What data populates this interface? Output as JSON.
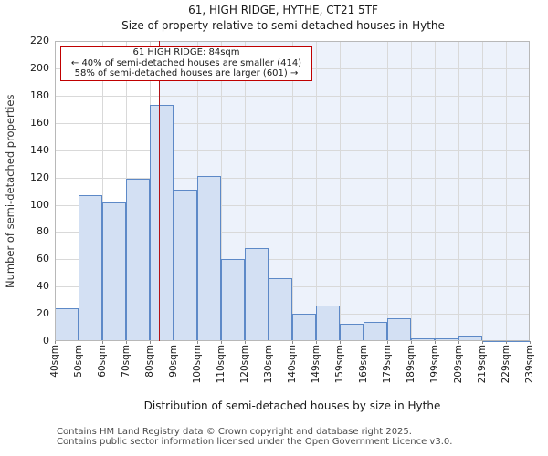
{
  "title": "61, HIGH RIDGE, HYTHE, CT21 5TF",
  "subtitle": "Size of property relative to semi-detached houses in Hythe",
  "annotation": {
    "line1": "61 HIGH RIDGE: 84sqm",
    "line2": "← 40% of semi-detached houses are smaller (414)",
    "line3": "58% of semi-detached houses are larger (601) →"
  },
  "chart_data": {
    "type": "bar",
    "title": "61, HIGH RIDGE, HYTHE, CT21 5TF — Size of property relative to semi-detached houses in Hythe",
    "bin_edges": [
      "40sqm",
      "50sqm",
      "60sqm",
      "70sqm",
      "80sqm",
      "90sqm",
      "100sqm",
      "110sqm",
      "120sqm",
      "130sqm",
      "140sqm",
      "149sqm",
      "159sqm",
      "169sqm",
      "179sqm",
      "189sqm",
      "199sqm",
      "209sqm",
      "219sqm",
      "229sqm",
      "239sqm"
    ],
    "values": [
      24,
      107,
      102,
      119,
      173,
      111,
      121,
      60,
      68,
      46,
      20,
      26,
      13,
      14,
      17,
      2,
      2,
      4,
      1,
      1
    ],
    "xlabel": "Distribution of semi-detached houses by size in Hythe",
    "ylabel": "Number of semi-detached properties",
    "ylim": [
      0,
      220
    ],
    "ytick_step": 20,
    "grid": true,
    "marker": {
      "value_sqm": 84,
      "axis_start_sqm": 40,
      "sqm_per_bin": 10
    },
    "colors": {
      "bar_fill": "#d3e0f3",
      "bar_stroke": "#5d89c7",
      "marker_line": "#b01116",
      "annotation_border": "#c00000",
      "larger_region_shade": "#edf2fb",
      "gridline": "#d9d9d9"
    }
  },
  "footer": {
    "line1": "Contains HM Land Registry data © Crown copyright and database right 2025.",
    "line2": "Contains public sector information licensed under the Open Government Licence v3.0."
  }
}
